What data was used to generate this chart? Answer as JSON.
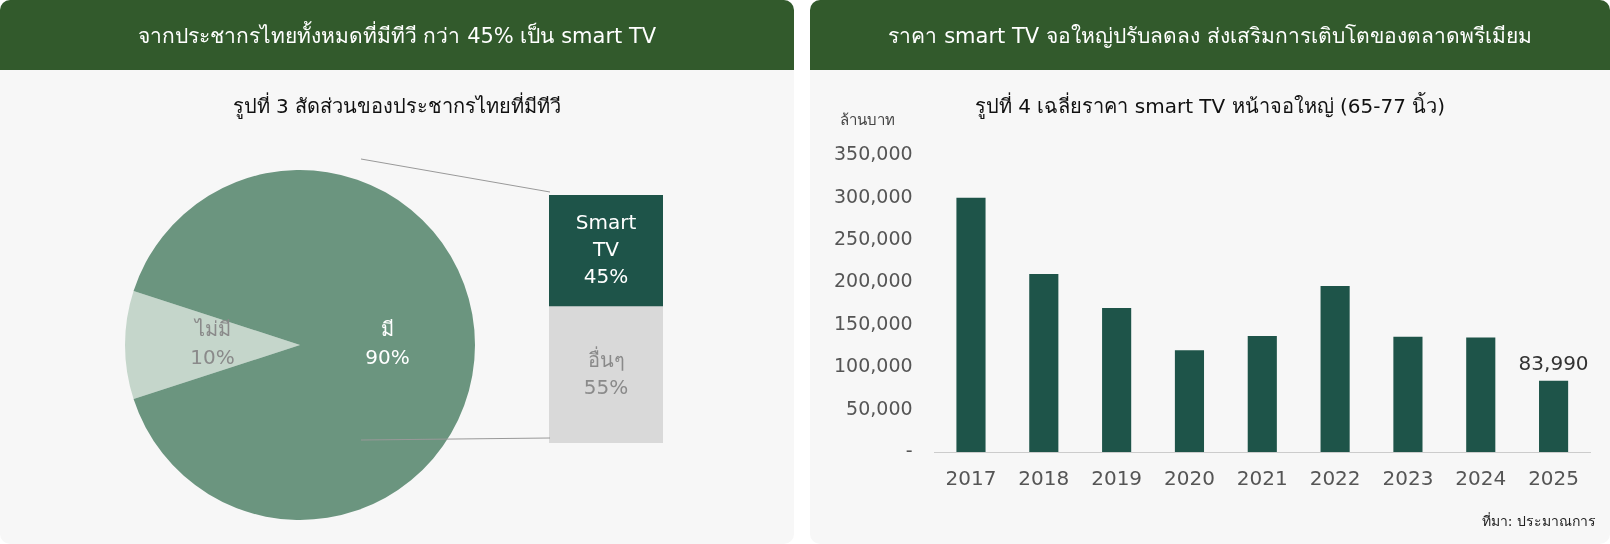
{
  "chart_data": [
    {
      "type": "pie",
      "title": "จากประชากรไทยทั้งหมดที่มีทีวี กว่า 45% เป็น smart TV",
      "subtitle": "รูปที่ 3 สัดส่วนของประชากรไทยที่มีทีวี",
      "categories": [
        "ไม่มี",
        "มี"
      ],
      "values": [
        10,
        90
      ],
      "colors": [
        "#c5d6cb",
        "#6b957f"
      ],
      "value_labels": [
        "10%",
        "90%"
      ]
    },
    {
      "type": "bar",
      "stacked": true,
      "categories": [
        null
      ],
      "series": [
        {
          "name": "อื่นๆ",
          "color": "#d9d9d9",
          "values": [
            55
          ],
          "value_labels": [
            "55%"
          ]
        },
        {
          "name": "Smart TV",
          "color": "#1e5449",
          "values": [
            45
          ],
          "value_labels": [
            "45%"
          ]
        }
      ]
    },
    {
      "type": "bar",
      "title": "ราคา smart TV จอใหญ่ปรับลดลง ส่งเสริมการเติบโตของตลาดพรีเมียม",
      "subtitle": "รูปที่ 4 เฉลี่ยราคา smart TV หน้าจอใหญ่ (65-77 นิ้ว)",
      "ylabel": "ล้านบาท",
      "categories": [
        "2017",
        "2018",
        "2019",
        "2020",
        "2021",
        "2022",
        "2023",
        "2024",
        "2025"
      ],
      "values": [
        300000,
        210000,
        170000,
        120000,
        137000,
        196000,
        136000,
        135000,
        83990
      ],
      "color": "#1e5449",
      "value_labels": [
        null,
        null,
        null,
        null,
        null,
        null,
        null,
        null,
        "83,990"
      ],
      "ylim": [
        0,
        350000
      ],
      "yticks": [
        {
          "value": 0,
          "label": "-"
        },
        {
          "value": 50000,
          "label": "50,000"
        },
        {
          "value": 100000,
          "label": "100,000"
        },
        {
          "value": 150000,
          "label": "150,000"
        },
        {
          "value": 200000,
          "label": "200,000"
        },
        {
          "value": 250000,
          "label": "250,000"
        },
        {
          "value": 300000,
          "label": "300,000"
        },
        {
          "value": 350000,
          "label": "350,000"
        }
      ],
      "annotations": [
        "ที่มา: ประมาณการ"
      ]
    }
  ]
}
